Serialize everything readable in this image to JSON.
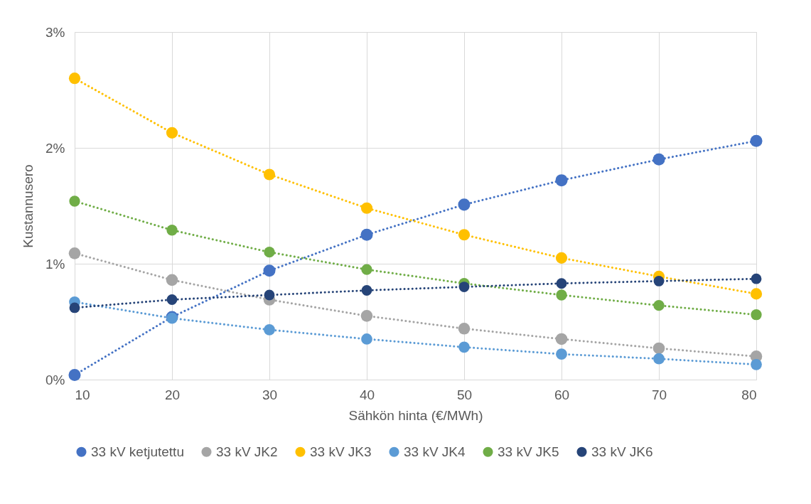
{
  "chart_data": {
    "type": "line",
    "xlabel": "Sähkön hinta (€/MWh)",
    "ylabel": "Kustannusero",
    "x": [
      10,
      20,
      30,
      40,
      50,
      60,
      70,
      80
    ],
    "xlim": [
      10,
      80
    ],
    "xticks": [
      10,
      20,
      30,
      40,
      50,
      60,
      70,
      80
    ],
    "ylim": [
      0,
      3
    ],
    "yticks": [
      {
        "value": 0,
        "label": "0%"
      },
      {
        "value": 1,
        "label": "1%"
      },
      {
        "value": 2,
        "label": "2%"
      },
      {
        "value": 3,
        "label": "3%"
      }
    ],
    "grid": true,
    "legend": "bottom",
    "marker": "circle",
    "line_style": "dotted",
    "series": [
      {
        "name": "33 kV ketjutettu",
        "color": "#4472c4",
        "values": [
          0.04,
          0.54,
          0.94,
          1.25,
          1.51,
          1.72,
          1.9,
          2.06
        ]
      },
      {
        "name": "33 kV JK2",
        "color": "#a5a5a5",
        "values": [
          1.09,
          0.86,
          0.69,
          0.55,
          0.44,
          0.35,
          0.27,
          0.2
        ]
      },
      {
        "name": "33 kV JK3",
        "color": "#ffc000",
        "values": [
          2.6,
          2.13,
          1.77,
          1.48,
          1.25,
          1.05,
          0.89,
          0.74
        ]
      },
      {
        "name": "33 kV JK4",
        "color": "#5b9bd5",
        "values": [
          0.67,
          0.53,
          0.43,
          0.35,
          0.28,
          0.22,
          0.18,
          0.13
        ]
      },
      {
        "name": "33 kV JK5",
        "color": "#70ad47",
        "values": [
          1.54,
          1.29,
          1.1,
          0.95,
          0.83,
          0.73,
          0.64,
          0.56
        ]
      },
      {
        "name": "33 kV JK6",
        "color": "#264478",
        "values": [
          0.62,
          0.69,
          0.73,
          0.77,
          0.8,
          0.83,
          0.85,
          0.87
        ]
      }
    ]
  }
}
